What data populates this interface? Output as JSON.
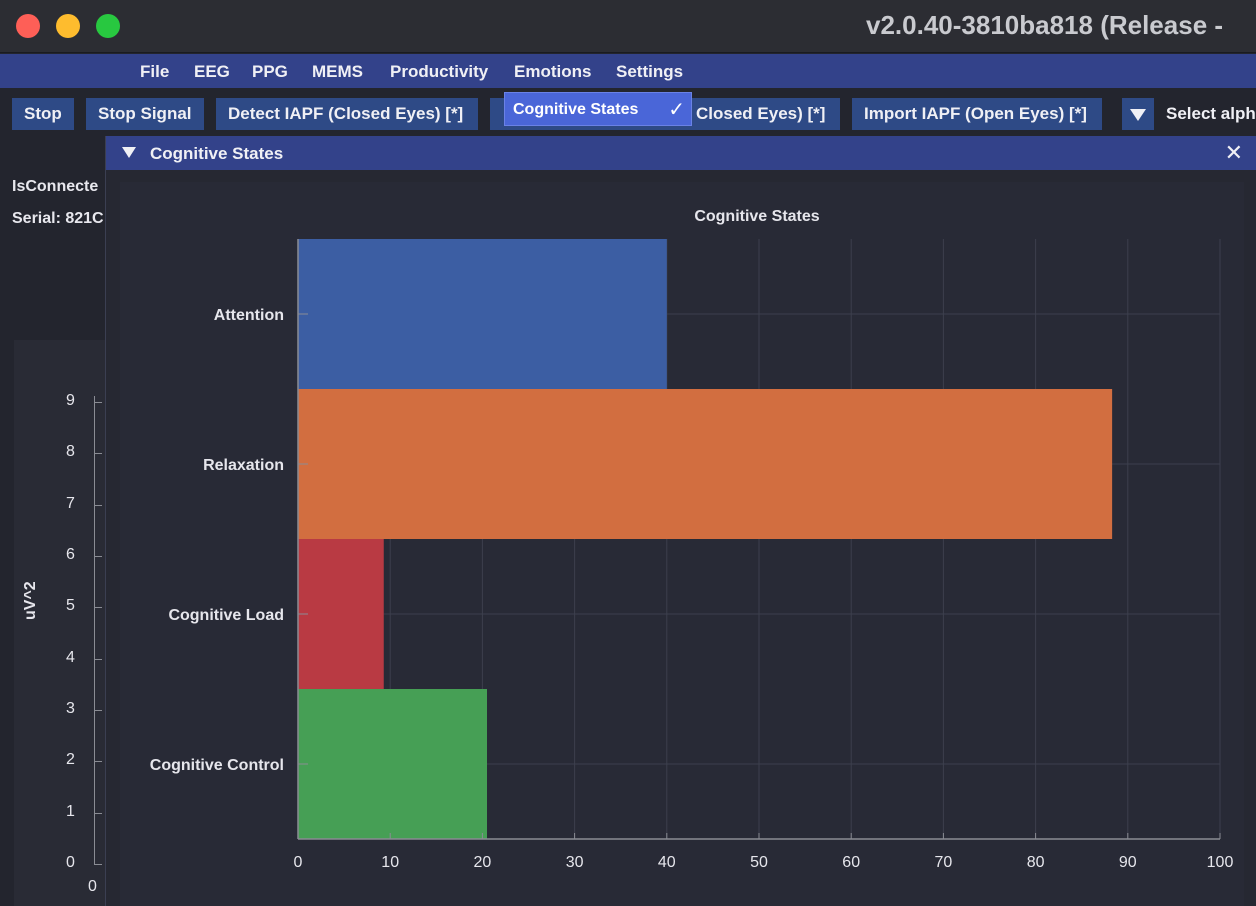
{
  "window": {
    "title": "v2.0.40-3810ba818 (Release -"
  },
  "menu": [
    "File",
    "EEG",
    "PPG",
    "MEMS",
    "Productivity",
    "Emotions",
    "Settings"
  ],
  "toolbar": {
    "stop": "Stop",
    "stop_signal": "Stop Signal",
    "detect_iapf_closed": "Detect IAPF (Closed Eyes) [*]",
    "import_iapf_closed_partial": "Closed Eyes) [*]",
    "import_iapf_open": "Import IAPF (Open Eyes) [*]",
    "select_alpha_partial": "Select alph"
  },
  "popup": {
    "label": "Cognitive States",
    "checked": true
  },
  "device": {
    "connected_partial": "IsConnecte",
    "serial_partial": "Serial: 821C"
  },
  "background_plot": {
    "ylabel": "uV^2",
    "yticks": [
      "9",
      "8",
      "7",
      "6",
      "5",
      "4",
      "3",
      "2",
      "1",
      "0"
    ],
    "xtick": "0"
  },
  "panel": {
    "title": "Cognitive States"
  },
  "chart_data": {
    "type": "bar",
    "orientation": "horizontal",
    "title": "Cognitive States",
    "categories": [
      "Attention",
      "Relaxation",
      "Cognitive Load",
      "Cognitive Control"
    ],
    "values": [
      40,
      88.3,
      9.3,
      20.5
    ],
    "colors": [
      "#3c5ea3",
      "#d26e40",
      "#b93a43",
      "#469f55"
    ],
    "xlim": [
      0,
      100
    ],
    "xticks": [
      "0",
      "10",
      "20",
      "30",
      "40",
      "50",
      "60",
      "70",
      "80",
      "90",
      "100"
    ],
    "grid": true
  }
}
